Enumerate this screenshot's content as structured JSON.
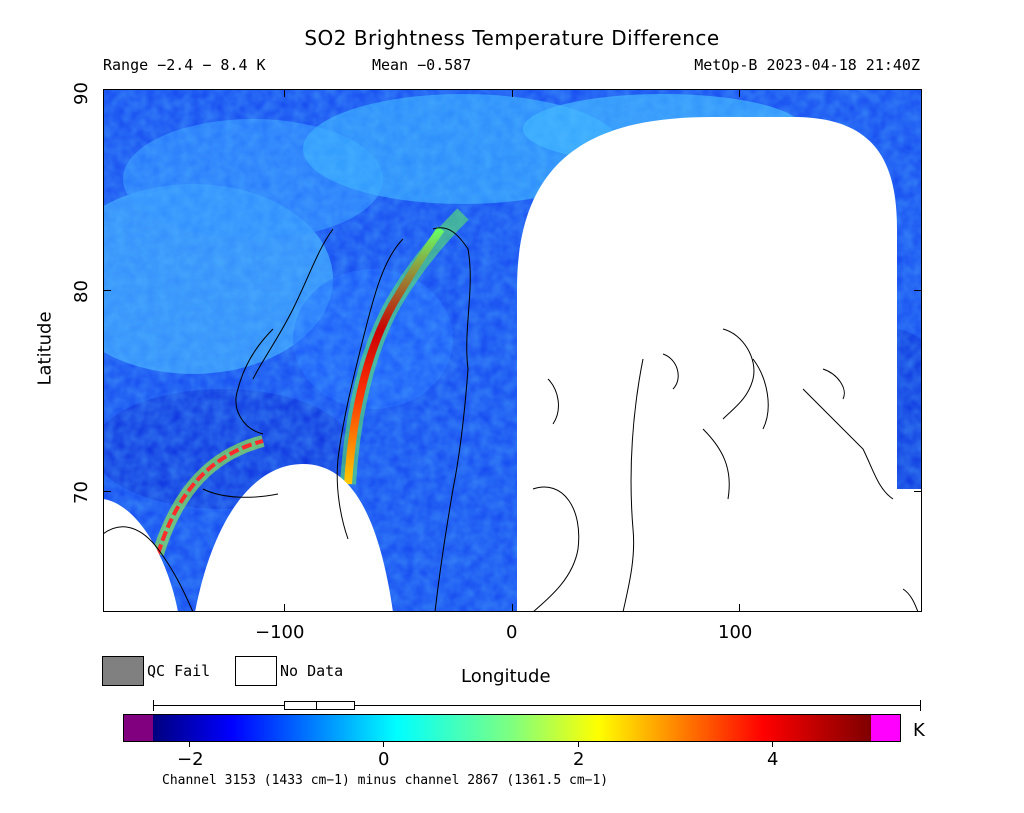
{
  "title": "SO2 Brightness Temperature Difference",
  "header": {
    "range": "Range −2.4 − 8.4 K",
    "mean": "Mean −0.587",
    "satellite_time": "MetOp-B 2023-04-18 21:40Z"
  },
  "axes": {
    "xlabel": "Longitude",
    "ylabel": "Latitude",
    "x_ticks": [
      {
        "value": -100,
        "label": "−100"
      },
      {
        "value": 0,
        "label": "0"
      },
      {
        "value": 100,
        "label": "100"
      }
    ],
    "y_ticks": [
      {
        "value": 70,
        "label": "70"
      },
      {
        "value": 80,
        "label": "80"
      },
      {
        "value": 90,
        "label": "90"
      }
    ],
    "xlim": [
      -180,
      180
    ],
    "ylim": [
      64,
      90
    ]
  },
  "legend": {
    "qc_fail": {
      "label": "QC Fail",
      "color": "#808080"
    },
    "no_data": {
      "label": "No Data",
      "color": "#ffffff"
    }
  },
  "colorbar": {
    "unit": "K",
    "range": [
      -2.4,
      5.0
    ],
    "ticks": [
      {
        "value": -2,
        "label": "−2"
      },
      {
        "value": 0,
        "label": "0"
      },
      {
        "value": 2,
        "label": "2"
      },
      {
        "value": 4,
        "label": "4"
      }
    ],
    "under_color": "#800080",
    "over_color": "#ff00ff",
    "box_whisker": {
      "min": -2.4,
      "q1": -1.0,
      "median": -0.7,
      "q3": -0.15,
      "max": 8.4
    }
  },
  "footer": "Channel 3153 (1433 cm−1) minus channel 2867 (1361.5 cm−1)",
  "colors": {
    "background_field": "#1a4fff",
    "plume_high": "#cc0000"
  }
}
